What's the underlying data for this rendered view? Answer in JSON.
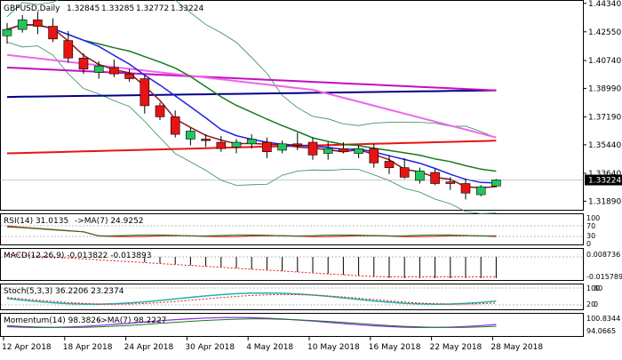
{
  "chart_data": [
    {
      "type": "candlestick",
      "title": "GBPUSD,Daily",
      "ohlc_readout": [
        "1.32845",
        "1.33285",
        "1.32772",
        "1.33224"
      ],
      "current_price": "1.33224",
      "y_ticks": [
        "1.44340",
        "1.42550",
        "1.40740",
        "1.38990",
        "1.37190",
        "1.35440",
        "1.33640",
        "1.31890"
      ],
      "ylim": [
        1.3135,
        1.4444
      ],
      "x_ticks": [
        "12 Apr 2018",
        "18 Apr 2018",
        "24 Apr 2018",
        "30 Apr 2018",
        "4 May 2018",
        "10 May 2018",
        "16 May 2018",
        "22 May 2018",
        "28 May 2018"
      ],
      "x_tick_index": [
        0,
        4,
        8,
        12,
        16,
        20,
        24,
        28,
        32
      ],
      "candles": [
        {
          "o": 1.423,
          "h": 1.431,
          "l": 1.418,
          "c": 1.427
        },
        {
          "o": 1.427,
          "h": 1.436,
          "l": 1.425,
          "c": 1.433
        },
        {
          "o": 1.433,
          "h": 1.438,
          "l": 1.424,
          "c": 1.429
        },
        {
          "o": 1.429,
          "h": 1.434,
          "l": 1.419,
          "c": 1.421
        },
        {
          "o": 1.42,
          "h": 1.426,
          "l": 1.406,
          "c": 1.409
        },
        {
          "o": 1.409,
          "h": 1.412,
          "l": 1.399,
          "c": 1.402
        },
        {
          "o": 1.4,
          "h": 1.407,
          "l": 1.396,
          "c": 1.404
        },
        {
          "o": 1.403,
          "h": 1.408,
          "l": 1.397,
          "c": 1.399
        },
        {
          "o": 1.399,
          "h": 1.402,
          "l": 1.394,
          "c": 1.396
        },
        {
          "o": 1.396,
          "h": 1.398,
          "l": 1.374,
          "c": 1.379
        },
        {
          "o": 1.379,
          "h": 1.381,
          "l": 1.37,
          "c": 1.372
        },
        {
          "o": 1.372,
          "h": 1.376,
          "l": 1.359,
          "c": 1.361
        },
        {
          "o": 1.358,
          "h": 1.365,
          "l": 1.354,
          "c": 1.363
        },
        {
          "o": 1.358,
          "h": 1.361,
          "l": 1.353,
          "c": 1.357
        },
        {
          "o": 1.356,
          "h": 1.36,
          "l": 1.35,
          "c": 1.352
        },
        {
          "o": 1.353,
          "h": 1.358,
          "l": 1.349,
          "c": 1.356
        },
        {
          "o": 1.355,
          "h": 1.361,
          "l": 1.352,
          "c": 1.358
        },
        {
          "o": 1.356,
          "h": 1.359,
          "l": 1.346,
          "c": 1.35
        },
        {
          "o": 1.351,
          "h": 1.357,
          "l": 1.349,
          "c": 1.355
        },
        {
          "o": 1.355,
          "h": 1.362,
          "l": 1.351,
          "c": 1.354
        },
        {
          "o": 1.356,
          "h": 1.359,
          "l": 1.345,
          "c": 1.348
        },
        {
          "o": 1.349,
          "h": 1.356,
          "l": 1.345,
          "c": 1.352
        },
        {
          "o": 1.352,
          "h": 1.356,
          "l": 1.349,
          "c": 1.35
        },
        {
          "o": 1.349,
          "h": 1.354,
          "l": 1.346,
          "c": 1.352
        },
        {
          "o": 1.352,
          "h": 1.355,
          "l": 1.34,
          "c": 1.343
        },
        {
          "o": 1.344,
          "h": 1.348,
          "l": 1.336,
          "c": 1.34
        },
        {
          "o": 1.34,
          "h": 1.346,
          "l": 1.333,
          "c": 1.334
        },
        {
          "o": 1.332,
          "h": 1.34,
          "l": 1.33,
          "c": 1.338
        },
        {
          "o": 1.337,
          "h": 1.339,
          "l": 1.329,
          "c": 1.33
        },
        {
          "o": 1.331,
          "h": 1.334,
          "l": 1.326,
          "c": 1.33
        },
        {
          "o": 1.33,
          "h": 1.333,
          "l": 1.32,
          "c": 1.324
        },
        {
          "o": 1.323,
          "h": 1.329,
          "l": 1.322,
          "c": 1.328
        },
        {
          "o": 1.32845,
          "h": 1.33285,
          "l": 1.32772,
          "c": 1.33224
        }
      ],
      "colors": {
        "bull_fill": "#22c55e",
        "bear_fill": "#e81414",
        "ma_fast": "#8b1a1a",
        "ma_mid": "#1f1fe6",
        "ma_green": "#1a7a1a",
        "ma_pink": "#ee66ee",
        "ma_magenta": "#c010c0",
        "ma_navy": "#00008b",
        "ma_red": "#e81414",
        "bollinger": "#2e8b57"
      }
    },
    {
      "type": "line",
      "title": "RSI(14) 31.0135",
      "signal_label": "->MA(7) 24.9252",
      "y_ticks": [
        "100",
        "70",
        "30",
        "0"
      ]
    },
    {
      "type": "histogram",
      "title": "MACD(12,26,9) -0.013822 -0.013893",
      "y_ticks": [
        "0.008736",
        "-0.015789"
      ]
    },
    {
      "type": "line",
      "title": "Stoch(5,3,3) 36.2206 23.2374",
      "y_ticks": [
        "100",
        "80",
        "20",
        "0"
      ]
    },
    {
      "type": "line",
      "title": "Momentum(14) 98.3826",
      "signal_label": "->MA(7) 98.2227",
      "y_ticks": [
        "100.8344",
        "94.0665"
      ]
    }
  ]
}
